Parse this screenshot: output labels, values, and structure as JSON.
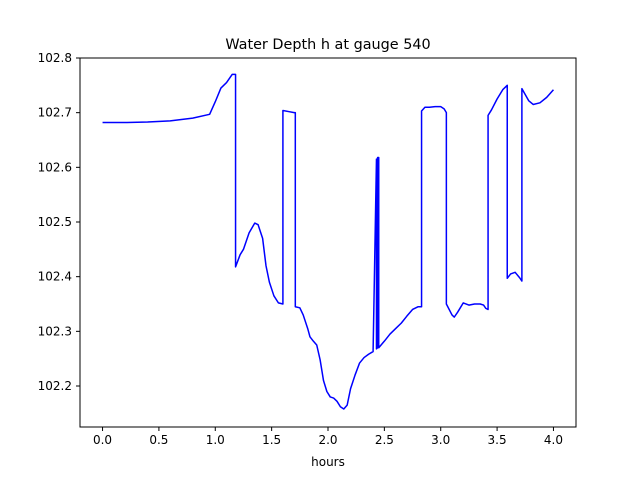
{
  "chart_data": {
    "type": "line",
    "title": "Water Depth h at gauge 540",
    "xlabel": "hours",
    "ylabel": "",
    "xlim": [
      -0.2,
      4.2
    ],
    "ylim": [
      102.125,
      102.8
    ],
    "x_ticks": [
      0.0,
      0.5,
      1.0,
      1.5,
      2.0,
      2.5,
      3.0,
      3.5,
      4.0
    ],
    "x_tick_labels": [
      "0.0",
      "0.5",
      "1.0",
      "1.5",
      "2.0",
      "2.5",
      "3.0",
      "3.5",
      "4.0"
    ],
    "y_ticks": [
      102.2,
      102.3,
      102.4,
      102.5,
      102.6,
      102.7,
      102.8
    ],
    "y_tick_labels": [
      "102.2",
      "102.3",
      "102.4",
      "102.5",
      "102.6",
      "102.7",
      "102.8"
    ],
    "grid": false,
    "series": [
      {
        "color": "#0000ff",
        "x": [
          0.0,
          0.2,
          0.4,
          0.6,
          0.8,
          0.95,
          1.0,
          1.05,
          1.1,
          1.15,
          1.18,
          1.18,
          1.22,
          1.25,
          1.3,
          1.35,
          1.38,
          1.42,
          1.45,
          1.48,
          1.52,
          1.56,
          1.6,
          1.6,
          1.65,
          1.7,
          1.71,
          1.71,
          1.75,
          1.78,
          1.82,
          1.84,
          1.87,
          1.9,
          1.93,
          1.96,
          1.99,
          2.02,
          2.05,
          2.08,
          2.11,
          2.14,
          2.17,
          2.2,
          2.24,
          2.28,
          2.32,
          2.36,
          2.4,
          2.43,
          2.43,
          2.44,
          2.44,
          2.45,
          2.45,
          2.5,
          2.55,
          2.6,
          2.65,
          2.7,
          2.75,
          2.8,
          2.83,
          2.83,
          2.86,
          2.9,
          2.95,
          3.0,
          3.03,
          3.05,
          3.05,
          3.1,
          3.12,
          3.15,
          3.2,
          3.25,
          3.3,
          3.35,
          3.38,
          3.4,
          3.42,
          3.42,
          3.45,
          3.5,
          3.55,
          3.59,
          3.59,
          3.62,
          3.66,
          3.7,
          3.72,
          3.72,
          3.78,
          3.82,
          3.88,
          3.94,
          4.0
        ],
        "y": [
          102.682,
          102.682,
          102.683,
          102.685,
          102.69,
          102.697,
          102.72,
          102.745,
          102.755,
          102.77,
          102.77,
          102.418,
          102.44,
          102.45,
          102.48,
          102.498,
          102.495,
          102.47,
          102.42,
          102.39,
          102.365,
          102.352,
          102.35,
          102.704,
          102.702,
          102.7,
          102.7,
          102.345,
          102.343,
          102.33,
          102.305,
          102.29,
          102.282,
          102.275,
          102.248,
          102.21,
          102.19,
          102.18,
          102.178,
          102.172,
          102.162,
          102.158,
          102.165,
          102.195,
          102.22,
          102.242,
          102.252,
          102.258,
          102.263,
          102.615,
          102.268,
          102.27,
          102.618,
          102.618,
          102.27,
          102.282,
          102.295,
          102.305,
          102.315,
          102.328,
          102.34,
          102.345,
          102.345,
          102.703,
          102.71,
          102.71,
          102.711,
          102.711,
          102.707,
          102.7,
          102.35,
          102.33,
          102.326,
          102.335,
          102.352,
          102.348,
          102.35,
          102.35,
          102.348,
          102.342,
          102.34,
          102.695,
          102.705,
          102.725,
          102.742,
          102.75,
          102.397,
          102.405,
          102.408,
          102.398,
          102.392,
          102.744,
          102.722,
          102.715,
          102.718,
          102.728,
          102.742
        ]
      }
    ]
  }
}
